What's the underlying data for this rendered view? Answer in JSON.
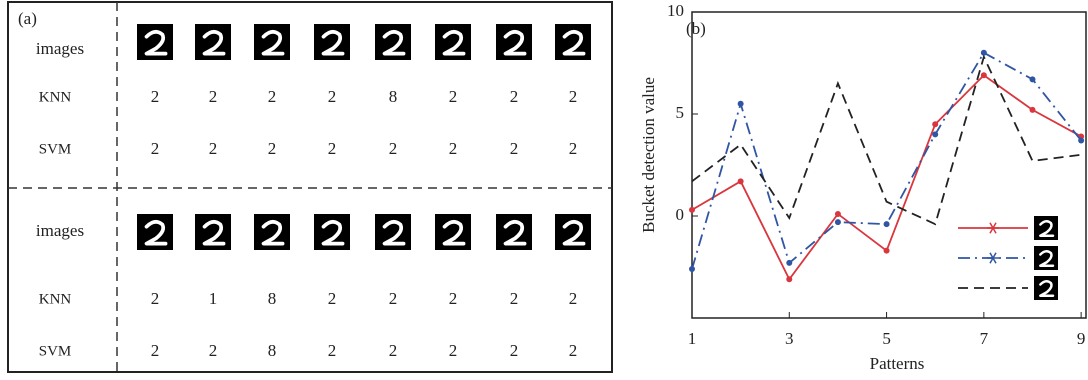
{
  "panel_a": {
    "label": "(a)",
    "sections": [
      {
        "image_label": "images",
        "rows": [
          {
            "label": "KNN",
            "values": [
              "2",
              "2",
              "2",
              "2",
              "8",
              "2",
              "2",
              "2"
            ],
            "colors": [
              "#222",
              "#222",
              "#222",
              "#222",
              "#b5452a",
              "#222",
              "#222",
              "#222"
            ]
          },
          {
            "label": "SVM",
            "values": [
              "2",
              "2",
              "2",
              "2",
              "2",
              "2",
              "2",
              "2"
            ],
            "colors": [
              "#222",
              "#222",
              "#222",
              "#222",
              "#222",
              "#222",
              "#222",
              "#222"
            ]
          }
        ]
      },
      {
        "image_label": "images",
        "rows": [
          {
            "label": "KNN",
            "values": [
              "2",
              "1",
              "8",
              "2",
              "2",
              "2",
              "2",
              "2"
            ],
            "colors": [
              "#222",
              "#b5452a",
              "#b5452a",
              "#222",
              "#222",
              "#222",
              "#222",
              "#222"
            ]
          },
          {
            "label": "SVM",
            "values": [
              "2",
              "2",
              "8",
              "2",
              "2",
              "2",
              "2",
              "2"
            ],
            "colors": [
              "#222",
              "#222",
              "#b5452a",
              "#222",
              "#222",
              "#222",
              "#222",
              "#222"
            ]
          }
        ]
      }
    ]
  },
  "chart_data": {
    "type": "line",
    "label": "(b)",
    "x_label": "Patterns",
    "y_label": "Bucket detection value",
    "x": [
      1,
      2,
      3,
      4,
      5,
      6,
      7,
      8,
      9
    ],
    "xlim": [
      1,
      9.1
    ],
    "ylim": [
      -5,
      10
    ],
    "xticks": [
      1,
      3,
      5,
      7,
      9
    ],
    "yticks": [
      0,
      5,
      10
    ],
    "legend": "lower right",
    "series": [
      {
        "color": "#d9363e",
        "linestyle": "solid",
        "marker": true,
        "values": [
          0.3,
          1.7,
          -3.1,
          0.1,
          -1.7,
          4.5,
          6.9,
          5.2,
          3.9
        ]
      },
      {
        "color": "#2f55a4",
        "linestyle": "dashdot",
        "marker": true,
        "values": [
          -2.6,
          5.5,
          -2.3,
          -0.3,
          -0.4,
          4.0,
          8.0,
          6.7,
          3.7
        ]
      },
      {
        "color": "#222222",
        "linestyle": "dashed",
        "marker": false,
        "values": [
          1.7,
          3.5,
          -0.1,
          6.5,
          0.7,
          -0.4,
          7.8,
          2.7,
          3.0
        ]
      }
    ]
  }
}
